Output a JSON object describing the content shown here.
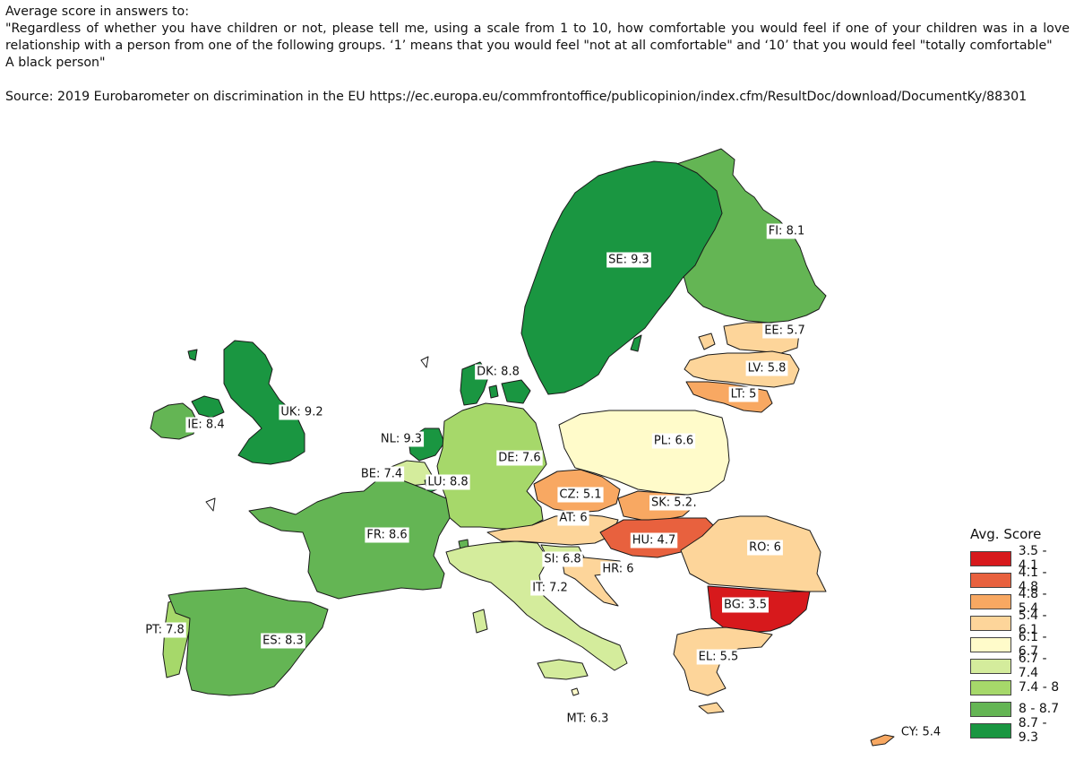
{
  "header": {
    "line1": "Average score in answers to:",
    "question": "\"Regardless of whether you have children or not, please tell me, using a scale from 1 to 10, how comfortable you would feel if one of your children was in a love relationship with a person from one of the following groups. ‘1’ means that you would feel \"not at all comfortable\" and ‘10’ that you would feel \"totally comfortable\"",
    "group": "A black person\"",
    "source": "Source: 2019 Eurobarometer on discrimination in the EU https://ec.europa.eu/commfrontoffice/publicopinion/index.cfm/ResultDoc/download/DocumentKy/88301"
  },
  "legend": {
    "title": "Avg. Score",
    "classes": [
      {
        "label": "3.5 - 4.1",
        "color": "#d7191c"
      },
      {
        "label": "4.1 - 4.8",
        "color": "#e8613e"
      },
      {
        "label": "4.8 - 5.4",
        "color": "#f8a862"
      },
      {
        "label": "5.4 - 6.1",
        "color": "#fdd59a"
      },
      {
        "label": "6.1 - 6.7",
        "color": "#fffbca"
      },
      {
        "label": "6.7 - 7.4",
        "color": "#d4ec9c"
      },
      {
        "label": "7.4 - 8",
        "color": "#a6d86a"
      },
      {
        "label": "8 - 8.7",
        "color": "#64b554"
      },
      {
        "label": "8.7 - 9.3",
        "color": "#1a9641"
      }
    ]
  },
  "countries": [
    {
      "code": "FI",
      "value": 8.1,
      "label": "FI: 8.1"
    },
    {
      "code": "SE",
      "value": 9.3,
      "label": "SE: 9.3"
    },
    {
      "code": "EE",
      "value": 5.7,
      "label": "EE: 5.7"
    },
    {
      "code": "LV",
      "value": 5.8,
      "label": "LV: 5.8"
    },
    {
      "code": "LT",
      "value": 5,
      "label": "LT: 5"
    },
    {
      "code": "DK",
      "value": 8.8,
      "label": "DK: 8.8"
    },
    {
      "code": "IE",
      "value": 8.4,
      "label": "IE: 8.4"
    },
    {
      "code": "UK",
      "value": 9.2,
      "label": "UK: 9.2"
    },
    {
      "code": "NL",
      "value": 9.3,
      "label": "NL: 9.3"
    },
    {
      "code": "BE",
      "value": 7.4,
      "label": "BE: 7.4"
    },
    {
      "code": "LU",
      "value": 8.8,
      "label": "LU: 8.8"
    },
    {
      "code": "DE",
      "value": 7.6,
      "label": "DE: 7.6"
    },
    {
      "code": "PL",
      "value": 6.6,
      "label": "PL: 6.6"
    },
    {
      "code": "CZ",
      "value": 5.1,
      "label": "CZ: 5.1"
    },
    {
      "code": "SK",
      "value": 5.2,
      "label": "SK: 5.2"
    },
    {
      "code": "AT",
      "value": 6,
      "label": "AT: 6"
    },
    {
      "code": "HU",
      "value": 4.7,
      "label": "HU: 4.7"
    },
    {
      "code": "RO",
      "value": 6,
      "label": "RO: 6"
    },
    {
      "code": "FR",
      "value": 8.6,
      "label": "FR: 8.6"
    },
    {
      "code": "SI",
      "value": 6.8,
      "label": "SI: 6.8"
    },
    {
      "code": "HR",
      "value": 6,
      "label": "HR: 6"
    },
    {
      "code": "IT",
      "value": 7.2,
      "label": "IT: 7.2"
    },
    {
      "code": "BG",
      "value": 3.5,
      "label": "BG: 3.5"
    },
    {
      "code": "PT",
      "value": 7.8,
      "label": "PT: 7.8"
    },
    {
      "code": "ES",
      "value": 8.3,
      "label": "ES: 8.3"
    },
    {
      "code": "EL",
      "value": 5.5,
      "label": "EL: 5.5"
    },
    {
      "code": "MT",
      "value": 6.3,
      "label": "MT: 6.3"
    },
    {
      "code": "CY",
      "value": 5.4,
      "label": "CY: 5.4"
    }
  ]
}
